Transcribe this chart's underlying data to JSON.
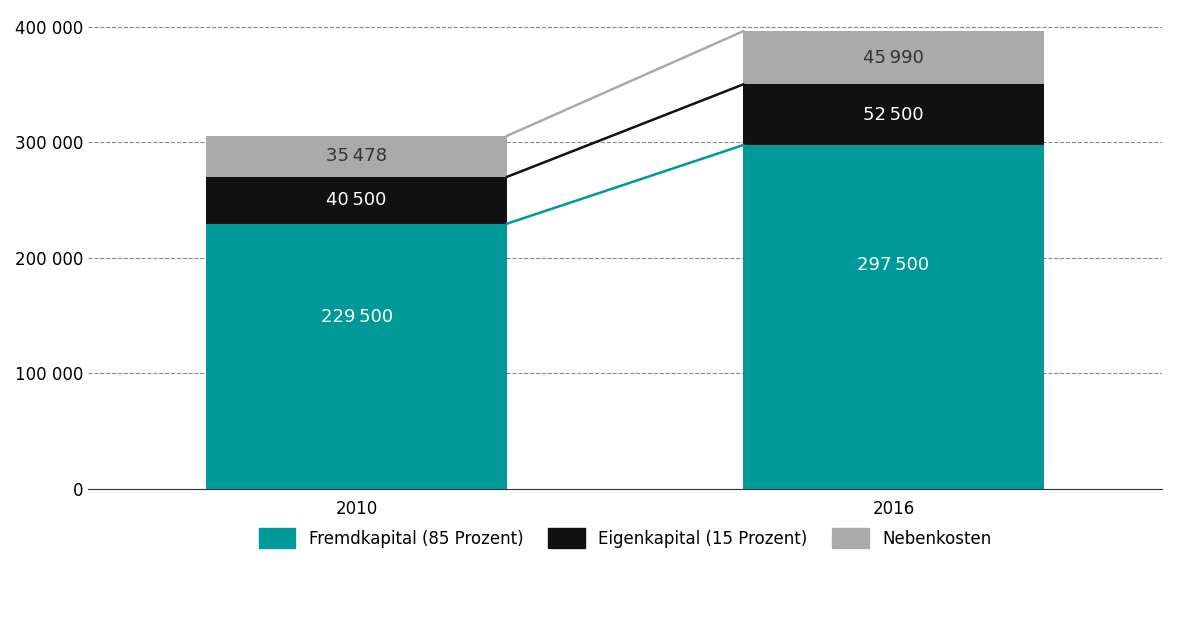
{
  "years": [
    "2010",
    "2016"
  ],
  "fremdkapital": [
    229500,
    297500
  ],
  "eigenkapital": [
    40500,
    52500
  ],
  "nebenkosten": [
    35478,
    45990
  ],
  "fremdkapital_color": "#009999",
  "eigenkapital_color": "#111111",
  "nebenkosten_color": "#aaaaaa",
  "bar_width": 0.28,
  "ylim": [
    0,
    410000
  ],
  "yticks": [
    0,
    100000,
    200000,
    300000,
    400000
  ],
  "ytick_labels": [
    "0",
    "100 000",
    "200 000",
    "300 000",
    "400 000"
  ],
  "legend_labels": [
    "Fremdkapital (85 Prozent)",
    "Eigenkapital (15 Prozent)",
    "Nebenkosten"
  ],
  "background_color": "#ffffff",
  "label_fontsize": 13,
  "tick_fontsize": 12,
  "legend_fontsize": 12,
  "bar_positions": [
    0.25,
    0.75
  ],
  "line_color_fremd": "#009999",
  "line_color_eigen": "#111111",
  "line_color_neben": "#aaaaaa",
  "line_width": 1.8,
  "xlim": [
    0.0,
    1.0
  ]
}
